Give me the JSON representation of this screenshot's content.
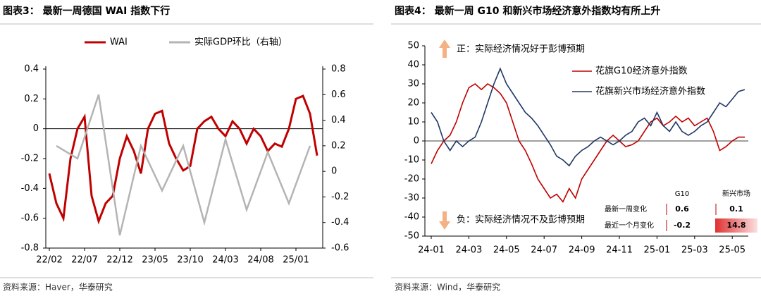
{
  "chart_data": [
    {
      "type": "line",
      "title": "图表3：  最新一周德国 WAI 指数下行",
      "source": "资料来源：Haver，华泰研究",
      "x": [
        "22/02",
        "22/03",
        "22/04",
        "22/05",
        "22/06",
        "22/07",
        "22/08",
        "22/09",
        "22/10",
        "22/11",
        "22/12",
        "23/01",
        "23/02",
        "23/03",
        "23/04",
        "23/05",
        "23/06",
        "23/07",
        "23/08",
        "23/09",
        "23/10",
        "23/11",
        "23/12",
        "24/01",
        "24/02",
        "24/03",
        "24/04",
        "24/05",
        "24/06",
        "24/07",
        "24/08",
        "24/09",
        "24/10",
        "24/11",
        "24/12",
        "25/01",
        "25/02",
        "25/03",
        "25/04"
      ],
      "xticks": [
        "22/02",
        "22/07",
        "22/12",
        "23/05",
        "23/10",
        "24/03",
        "24/08",
        "25/01"
      ],
      "series": [
        {
          "name": "WAI",
          "color": "#c00000",
          "values": [
            -0.3,
            -0.5,
            -0.6,
            -0.2,
            0.0,
            0.08,
            -0.45,
            -0.62,
            -0.5,
            -0.45,
            -0.2,
            -0.05,
            -0.15,
            -0.3,
            0.0,
            0.1,
            0.12,
            -0.1,
            -0.2,
            -0.28,
            -0.25,
            0.0,
            0.05,
            0.08,
            0.0,
            -0.05,
            0.05,
            0.0,
            -0.1,
            0.0,
            -0.05,
            -0.15,
            -0.1,
            -0.12,
            0.0,
            0.2,
            0.22,
            0.1,
            -0.18
          ]
        },
        {
          "name": "实际GDP环比（右轴）",
          "color": "#b4b4b4",
          "axis": "y2",
          "x": [
            "22/03",
            "22/06",
            "22/09",
            "22/12",
            "23/03",
            "23/06",
            "23/09",
            "23/12",
            "24/03",
            "24/06",
            "24/09",
            "24/12",
            "25/03"
          ],
          "values": [
            0.2,
            0.1,
            0.6,
            -0.5,
            0.2,
            -0.15,
            0.2,
            -0.4,
            0.25,
            -0.3,
            0.15,
            -0.25,
            0.2
          ]
        }
      ],
      "ylim": [
        -0.8,
        0.4
      ],
      "yticks": [
        -0.8,
        -0.6,
        -0.4,
        -0.2,
        0,
        0.2,
        0.4
      ],
      "y2lim": [
        -0.6,
        0.8
      ],
      "y2ticks": [
        -0.6,
        -0.4,
        -0.2,
        0,
        0.2,
        0.4,
        0.6,
        0.8
      ],
      "legend": "top"
    },
    {
      "type": "line",
      "title": "图表4：  最新一周 G10 和新兴市场经济意外指数均有所上升",
      "source": "资料来源：Wind，华泰研究",
      "categories": [
        "24-01",
        null,
        null,
        null,
        null,
        null,
        "24-03",
        null,
        null,
        null,
        null,
        null,
        "24-05",
        null,
        null,
        null,
        null,
        null,
        "24-07",
        null,
        null,
        null,
        null,
        null,
        "24-09",
        null,
        null,
        null,
        null,
        null,
        "24-11",
        null,
        null,
        null,
        null,
        null,
        "25-01",
        null,
        null,
        null,
        null,
        null,
        "25-03",
        null,
        null,
        null,
        null,
        null,
        "25-05",
        null,
        null
      ],
      "series": [
        {
          "name": "花旗G10经济意外指数",
          "color": "#c00000",
          "values": [
            -12,
            -5,
            0,
            3,
            10,
            20,
            28,
            30,
            27,
            30,
            28,
            25,
            20,
            10,
            0,
            -5,
            -12,
            -20,
            -25,
            -30,
            -28,
            -32,
            -25,
            -30,
            -20,
            -15,
            -10,
            -5,
            0,
            3,
            0,
            -3,
            -2,
            0,
            5,
            10,
            12,
            8,
            10,
            13,
            10,
            12,
            8,
            10,
            12,
            5,
            -5,
            -3,
            0,
            2,
            2
          ]
        },
        {
          "name": "花旗新兴市场经济意外指数",
          "color": "#1f3864",
          "values": [
            15,
            10,
            0,
            -5,
            0,
            -3,
            0,
            2,
            10,
            20,
            30,
            38,
            30,
            25,
            20,
            15,
            12,
            8,
            3,
            -2,
            -8,
            -10,
            -13,
            -8,
            -5,
            -3,
            0,
            2,
            0,
            -2,
            0,
            3,
            5,
            10,
            12,
            8,
            15,
            8,
            5,
            10,
            5,
            3,
            5,
            8,
            10,
            15,
            20,
            18,
            22,
            26,
            27
          ]
        }
      ],
      "ylim": [
        -50,
        50
      ],
      "yticks": [
        -50,
        -40,
        -30,
        -20,
        -10,
        0,
        10,
        20,
        30,
        40,
        50
      ],
      "annotations": [
        "正：实际经济情况好于彭博预期",
        "负：实际经济情况不及彭博预期"
      ],
      "table": {
        "header": [
          "G10",
          "新兴市场"
        ],
        "rows": [
          {
            "label": "最新一周变化",
            "values": [
              0.6,
              0.1
            ]
          },
          {
            "label": "最近一个月变化",
            "values": [
              -0.2,
              14.8
            ]
          }
        ]
      },
      "legend": "upper right"
    }
  ]
}
